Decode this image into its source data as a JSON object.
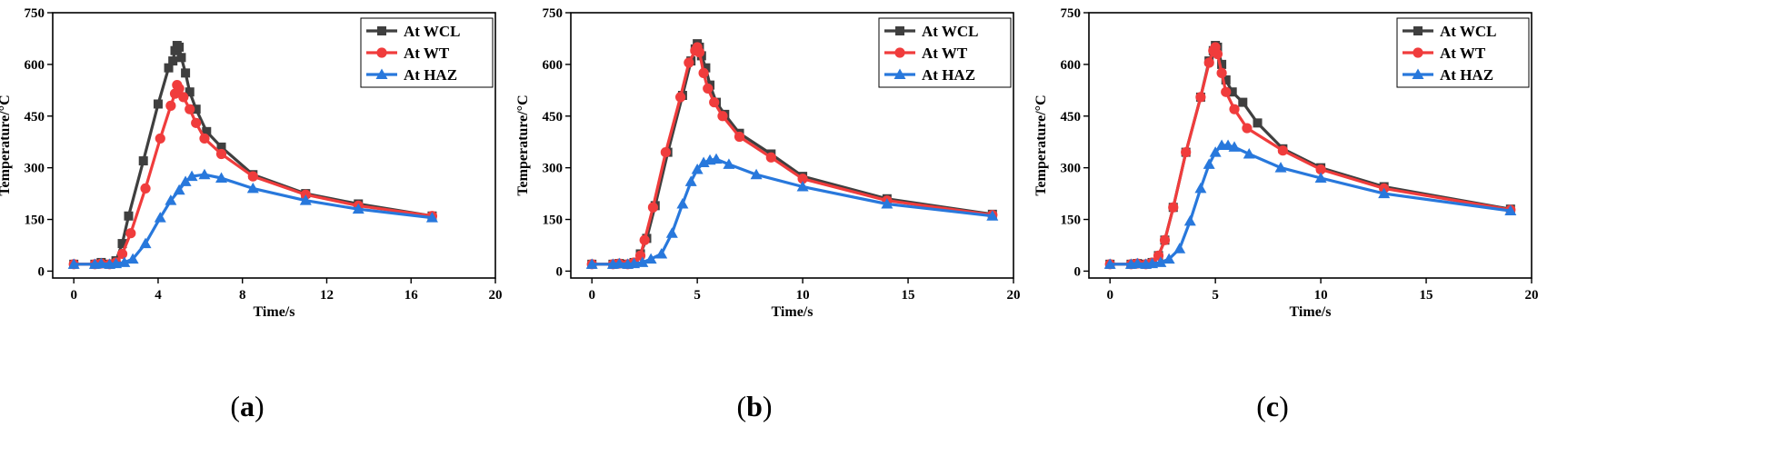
{
  "colors": {
    "WCL": "#3f3f3f",
    "WT": "#f03c3c",
    "HAZ": "#2878dc",
    "axis": "#000000"
  },
  "chart_data": [
    {
      "type": "line",
      "caption": {
        "pre": "(",
        "letter": "a",
        "post": ")"
      },
      "xlabel": "Time/s",
      "ylabel": "Temperature/°C",
      "xlim": [
        -1,
        20
      ],
      "ylim": [
        -20,
        750
      ],
      "xticks": [
        0,
        4,
        8,
        12,
        16,
        20
      ],
      "xticklabels": [
        "0",
        "4",
        "8",
        "12",
        "16",
        "20"
      ],
      "yticks": [
        0,
        150,
        300,
        450,
        600,
        750
      ],
      "yticklabels": [
        "0",
        "150",
        "300",
        "450",
        "600",
        "750"
      ],
      "legend": "top-right",
      "series": [
        {
          "name": "At WCL",
          "key": "WCL",
          "marker": "square",
          "points": [
            [
              0,
              20
            ],
            [
              1,
              20
            ],
            [
              1.3,
              25
            ],
            [
              1.7,
              20
            ],
            [
              2,
              30
            ],
            [
              2.3,
              80
            ],
            [
              2.6,
              160
            ],
            [
              3.3,
              320
            ],
            [
              4,
              485
            ],
            [
              4.5,
              590
            ],
            [
              4.7,
              610
            ],
            [
              4.8,
              640
            ],
            [
              4.9,
              655
            ],
            [
              5,
              650
            ],
            [
              5.1,
              620
            ],
            [
              5.3,
              575
            ],
            [
              5.5,
              520
            ],
            [
              5.8,
              470
            ],
            [
              6.3,
              405
            ],
            [
              7,
              360
            ],
            [
              8.5,
              280
            ],
            [
              11,
              225
            ],
            [
              13.5,
              195
            ],
            [
              17,
              160
            ]
          ]
        },
        {
          "name": "At WT",
          "key": "WT",
          "marker": "circle",
          "points": [
            [
              0,
              20
            ],
            [
              1,
              20
            ],
            [
              1.3,
              22
            ],
            [
              1.7,
              20
            ],
            [
              2,
              25
            ],
            [
              2.3,
              50
            ],
            [
              2.7,
              110
            ],
            [
              3.4,
              240
            ],
            [
              4.1,
              385
            ],
            [
              4.6,
              480
            ],
            [
              4.8,
              515
            ],
            [
              4.9,
              540
            ],
            [
              5,
              530
            ],
            [
              5.2,
              505
            ],
            [
              5.5,
              470
            ],
            [
              5.8,
              430
            ],
            [
              6.2,
              385
            ],
            [
              7,
              340
            ],
            [
              8.5,
              275
            ],
            [
              11,
              222
            ],
            [
              13.5,
              190
            ],
            [
              17,
              160
            ]
          ]
        },
        {
          "name": "At HAZ",
          "key": "HAZ",
          "marker": "triangle",
          "points": [
            [
              0,
              20
            ],
            [
              1,
              20
            ],
            [
              1.3,
              22
            ],
            [
              1.7,
              20
            ],
            [
              2,
              22
            ],
            [
              2.4,
              25
            ],
            [
              2.8,
              35
            ],
            [
              3.4,
              80
            ],
            [
              4.1,
              155
            ],
            [
              4.6,
              205
            ],
            [
              5,
              235
            ],
            [
              5.3,
              260
            ],
            [
              5.6,
              275
            ],
            [
              6.2,
              280
            ],
            [
              7,
              270
            ],
            [
              8.5,
              240
            ],
            [
              11,
              205
            ],
            [
              13.5,
              180
            ],
            [
              17,
              155
            ]
          ]
        }
      ]
    },
    {
      "type": "line",
      "caption": {
        "pre": "(",
        "letter": "b",
        "post": ")"
      },
      "xlabel": "Time/s",
      "ylabel": "Temperature/°C",
      "xlim": [
        -1,
        20
      ],
      "ylim": [
        -20,
        750
      ],
      "xticks": [
        0,
        5,
        10,
        15,
        20
      ],
      "xticklabels": [
        "0",
        "5",
        "10",
        "15",
        "20"
      ],
      "yticks": [
        0,
        150,
        300,
        450,
        600,
        750
      ],
      "yticklabels": [
        "0",
        "150",
        "300",
        "450",
        "600",
        "750"
      ],
      "legend": "top-right",
      "series": [
        {
          "name": "At WCL",
          "key": "WCL",
          "marker": "square",
          "points": [
            [
              0,
              20
            ],
            [
              1,
              20
            ],
            [
              1.3,
              22
            ],
            [
              1.7,
              20
            ],
            [
              2,
              25
            ],
            [
              2.3,
              50
            ],
            [
              2.6,
              95
            ],
            [
              3,
              190
            ],
            [
              3.6,
              345
            ],
            [
              4.3,
              510
            ],
            [
              4.7,
              610
            ],
            [
              4.9,
              645
            ],
            [
              5,
              660
            ],
            [
              5.1,
              650
            ],
            [
              5.2,
              625
            ],
            [
              5.4,
              590
            ],
            [
              5.6,
              540
            ],
            [
              5.9,
              490
            ],
            [
              6.3,
              455
            ],
            [
              7,
              400
            ],
            [
              8.5,
              340
            ],
            [
              10,
              275
            ],
            [
              14,
              210
            ],
            [
              19,
              165
            ]
          ]
        },
        {
          "name": "At WT",
          "key": "WT",
          "marker": "circle",
          "points": [
            [
              0,
              20
            ],
            [
              1,
              20
            ],
            [
              1.3,
              22
            ],
            [
              1.7,
              20
            ],
            [
              2,
              25
            ],
            [
              2.3,
              45
            ],
            [
              2.5,
              90
            ],
            [
              2.9,
              185
            ],
            [
              3.5,
              345
            ],
            [
              4.2,
              505
            ],
            [
              4.6,
              605
            ],
            [
              4.9,
              640
            ],
            [
              5,
              650
            ],
            [
              5.1,
              635
            ],
            [
              5.3,
              575
            ],
            [
              5.5,
              530
            ],
            [
              5.8,
              490
            ],
            [
              6.2,
              450
            ],
            [
              7,
              390
            ],
            [
              8.5,
              330
            ],
            [
              10,
              268
            ],
            [
              14,
              205
            ],
            [
              19,
              163
            ]
          ]
        },
        {
          "name": "At HAZ",
          "key": "HAZ",
          "marker": "triangle",
          "points": [
            [
              0,
              20
            ],
            [
              1,
              20
            ],
            [
              1.3,
              22
            ],
            [
              1.7,
              20
            ],
            [
              2,
              22
            ],
            [
              2.4,
              25
            ],
            [
              2.8,
              35
            ],
            [
              3.3,
              50
            ],
            [
              3.8,
              110
            ],
            [
              4.3,
              195
            ],
            [
              4.7,
              260
            ],
            [
              5,
              295
            ],
            [
              5.3,
              315
            ],
            [
              5.6,
              322
            ],
            [
              5.9,
              325
            ],
            [
              6.5,
              310
            ],
            [
              7.8,
              280
            ],
            [
              10,
              245
            ],
            [
              14,
              195
            ],
            [
              19,
              160
            ]
          ]
        }
      ]
    },
    {
      "type": "line",
      "caption": {
        "pre": "(",
        "letter": "c",
        "post": ")"
      },
      "xlabel": "Time/s",
      "ylabel": "Temperature/°C",
      "xlim": [
        -1,
        20
      ],
      "ylim": [
        -20,
        750
      ],
      "xticks": [
        0,
        5,
        10,
        15,
        20
      ],
      "xticklabels": [
        "0",
        "5",
        "10",
        "15",
        "20"
      ],
      "yticks": [
        0,
        150,
        300,
        450,
        600,
        750
      ],
      "yticklabels": [
        "0",
        "150",
        "300",
        "450",
        "600",
        "750"
      ],
      "legend": "top-right",
      "series": [
        {
          "name": "At WCL",
          "key": "WCL",
          "marker": "square",
          "points": [
            [
              0,
              20
            ],
            [
              1,
              20
            ],
            [
              1.3,
              22
            ],
            [
              1.7,
              20
            ],
            [
              2,
              25
            ],
            [
              2.3,
              45
            ],
            [
              2.6,
              90
            ],
            [
              3,
              185
            ],
            [
              3.6,
              345
            ],
            [
              4.3,
              505
            ],
            [
              4.7,
              610
            ],
            [
              4.9,
              640
            ],
            [
              5,
              655
            ],
            [
              5.1,
              650
            ],
            [
              5.3,
              600
            ],
            [
              5.5,
              555
            ],
            [
              5.8,
              520
            ],
            [
              6.3,
              490
            ],
            [
              7,
              430
            ],
            [
              8.2,
              355
            ],
            [
              10,
              300
            ],
            [
              13,
              245
            ],
            [
              19,
              180
            ]
          ]
        },
        {
          "name": "At WT",
          "key": "WT",
          "marker": "circle",
          "points": [
            [
              0,
              20
            ],
            [
              1,
              20
            ],
            [
              1.3,
              22
            ],
            [
              1.7,
              20
            ],
            [
              2,
              25
            ],
            [
              2.3,
              45
            ],
            [
              2.6,
              90
            ],
            [
              3,
              185
            ],
            [
              3.6,
              345
            ],
            [
              4.3,
              505
            ],
            [
              4.7,
              605
            ],
            [
              4.9,
              640
            ],
            [
              5,
              650
            ],
            [
              5.1,
              630
            ],
            [
              5.3,
              575
            ],
            [
              5.5,
              520
            ],
            [
              5.9,
              470
            ],
            [
              6.5,
              415
            ],
            [
              8.2,
              350
            ],
            [
              10,
              295
            ],
            [
              13,
              240
            ],
            [
              19,
              178
            ]
          ]
        },
        {
          "name": "At HAZ",
          "key": "HAZ",
          "marker": "triangle",
          "points": [
            [
              0,
              20
            ],
            [
              1,
              20
            ],
            [
              1.3,
              22
            ],
            [
              1.7,
              20
            ],
            [
              2,
              22
            ],
            [
              2.4,
              25
            ],
            [
              2.8,
              35
            ],
            [
              3.3,
              65
            ],
            [
              3.8,
              145
            ],
            [
              4.3,
              240
            ],
            [
              4.7,
              310
            ],
            [
              5,
              345
            ],
            [
              5.3,
              365
            ],
            [
              5.6,
              365
            ],
            [
              5.9,
              360
            ],
            [
              6.6,
              340
            ],
            [
              8.1,
              300
            ],
            [
              10,
              270
            ],
            [
              13,
              225
            ],
            [
              19,
              175
            ]
          ]
        }
      ]
    }
  ]
}
